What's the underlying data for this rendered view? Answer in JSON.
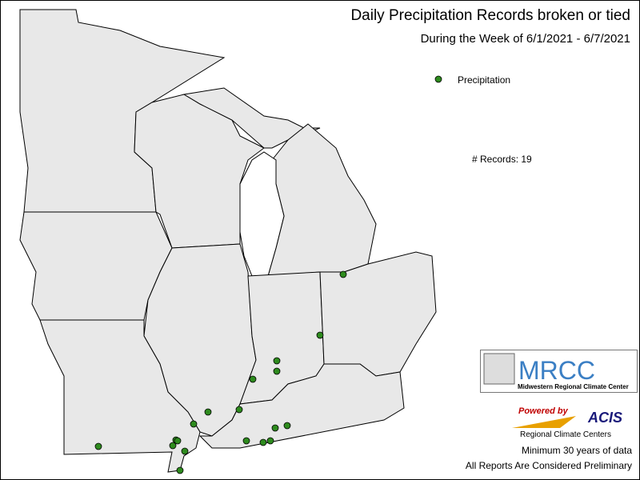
{
  "header": {
    "title": "Daily Precipitation Records broken or tied",
    "subtitle": "During the Week of 6/1/2021 - 6/7/2021"
  },
  "legend": {
    "label": "Precipitation"
  },
  "records": "# Records: 19",
  "logo": {
    "name": "MRCC",
    "full_name": "Midwestern Regional Climate Center"
  },
  "acis": {
    "powered": "Powered by",
    "name": "ACIS",
    "sub": "Regional Climate Centers"
  },
  "notes": [
    "Minimum 30 years of data",
    "All Reports Are Considered Preliminary"
  ]
}
